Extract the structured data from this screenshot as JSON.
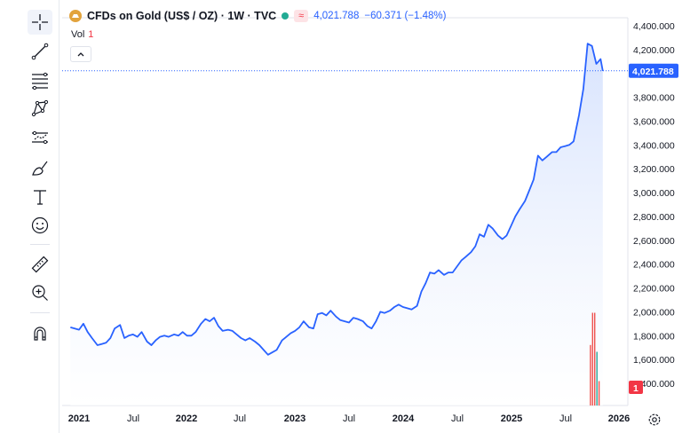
{
  "header": {
    "title": "CFDs on Gold (US$ / OZ) · 1W · TVC",
    "price": "4,021.788",
    "change": "−60.371 (−1.48%)",
    "wave_glyph": "≈"
  },
  "volume": {
    "label": "Vol",
    "value": "1"
  },
  "price_label": "4,021.788",
  "volume_label": "1",
  "toolbar": {
    "icons": [
      "crosshair-icon",
      "trend-line-icon",
      "fib-retracement-icon",
      "pattern-icon",
      "projection-icon",
      "brush-icon",
      "text-icon",
      "emoji-icon",
      "ruler-icon",
      "zoom-in-icon",
      "magnet-icon"
    ]
  },
  "colors": {
    "line": "#2962ff",
    "area_top": "#d6e2fd",
    "area_bottom": "#ffffff",
    "price_tag": "#2962ff",
    "volume_up": "#26a69a",
    "volume_down": "#ef5350",
    "badge": "#f23645"
  },
  "chart_data": {
    "type": "area",
    "y_axis": {
      "min": 1400,
      "max": 4400,
      "ticks": [
        "4,400.000",
        "4,200.000",
        "4,000.000",
        "3,800.000",
        "3,600.000",
        "3,400.000",
        "3,200.000",
        "3,000.000",
        "2,800.000",
        "2,600.000",
        "2,400.000",
        "2,200.000",
        "2,000.000",
        "1,800.000",
        "1,600.000",
        "1,400.000"
      ]
    },
    "x_axis": {
      "ticks": [
        "2021",
        "Jul",
        "2022",
        "Jul",
        "2023",
        "Jul",
        "2024",
        "Jul",
        "2025",
        "Jul",
        "2026"
      ]
    },
    "x": [
      2020.92,
      2021.0,
      2021.04,
      2021.08,
      2021.12,
      2021.17,
      2021.21,
      2021.25,
      2021.29,
      2021.33,
      2021.38,
      2021.42,
      2021.46,
      2021.5,
      2021.54,
      2021.58,
      2021.63,
      2021.67,
      2021.71,
      2021.75,
      2021.79,
      2021.83,
      2021.88,
      2021.92,
      2021.96,
      2022.0,
      2022.04,
      2022.08,
      2022.13,
      2022.17,
      2022.21,
      2022.25,
      2022.29,
      2022.33,
      2022.38,
      2022.42,
      2022.46,
      2022.5,
      2022.54,
      2022.58,
      2022.63,
      2022.67,
      2022.71,
      2022.75,
      2022.79,
      2022.83,
      2022.88,
      2022.92,
      2022.96,
      2023.0,
      2023.04,
      2023.08,
      2023.13,
      2023.17,
      2023.21,
      2023.25,
      2023.29,
      2023.33,
      2023.38,
      2023.42,
      2023.46,
      2023.5,
      2023.54,
      2023.58,
      2023.63,
      2023.67,
      2023.71,
      2023.75,
      2023.79,
      2023.83,
      2023.88,
      2023.92,
      2023.96,
      2024.0,
      2024.04,
      2024.08,
      2024.13,
      2024.17,
      2024.21,
      2024.25,
      2024.29,
      2024.33,
      2024.38,
      2024.42,
      2024.46,
      2024.5,
      2024.54,
      2024.58,
      2024.63,
      2024.67,
      2024.71,
      2024.75,
      2024.79,
      2024.83,
      2024.88,
      2024.92,
      2024.96,
      2025.0,
      2025.04,
      2025.08,
      2025.13,
      2025.17,
      2025.21,
      2025.25,
      2025.29,
      2025.33,
      2025.38,
      2025.42,
      2025.46,
      2025.5,
      2025.54,
      2025.58,
      2025.63,
      2025.67,
      2025.71,
      2025.75,
      2025.79,
      2025.81,
      2025.83,
      2025.85
    ],
    "series": [
      {
        "values": [
          1870,
          1850,
          1900,
          1830,
          1780,
          1720,
          1730,
          1740,
          1780,
          1860,
          1890,
          1780,
          1800,
          1810,
          1790,
          1830,
          1750,
          1720,
          1760,
          1790,
          1800,
          1790,
          1810,
          1800,
          1830,
          1800,
          1800,
          1830,
          1900,
          1940,
          1920,
          1950,
          1880,
          1840,
          1850,
          1840,
          1810,
          1780,
          1760,
          1780,
          1750,
          1720,
          1680,
          1640,
          1660,
          1680,
          1760,
          1790,
          1820,
          1840,
          1870,
          1920,
          1870,
          1860,
          1980,
          1990,
          1970,
          2010,
          1960,
          1930,
          1920,
          1910,
          1950,
          1940,
          1920,
          1880,
          1860,
          1920,
          2000,
          1990,
          2010,
          2040,
          2060,
          2040,
          2030,
          2020,
          2050,
          2170,
          2240,
          2330,
          2320,
          2350,
          2310,
          2330,
          2330,
          2380,
          2430,
          2460,
          2500,
          2550,
          2650,
          2630,
          2730,
          2700,
          2640,
          2610,
          2640,
          2720,
          2800,
          2860,
          2930,
          3020,
          3110,
          3310,
          3270,
          3300,
          3340,
          3340,
          3380,
          3390,
          3400,
          3430,
          3650,
          3870,
          4250,
          4230,
          4080,
          4100,
          4120,
          4020
        ]
      }
    ],
    "volume_bars": [
      {
        "x": 2025.73,
        "value": 0.62,
        "color": "down"
      },
      {
        "x": 2025.75,
        "value": 0.95,
        "color": "down"
      },
      {
        "x": 2025.77,
        "value": 0.95,
        "color": "down"
      },
      {
        "x": 2025.79,
        "value": 0.55,
        "color": "up"
      },
      {
        "x": 2025.81,
        "value": 0.25,
        "color": "down"
      }
    ],
    "last_value": 4021.788,
    "grid": false,
    "legend": "none"
  }
}
